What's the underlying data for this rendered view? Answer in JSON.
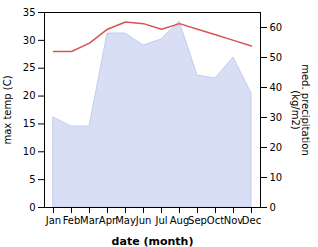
{
  "chart_data": {
    "type": "line",
    "categories": [
      "Jan",
      "Feb",
      "Mar",
      "Apr",
      "May",
      "Jun",
      "Jul",
      "Aug",
      "Sep",
      "Oct",
      "Nov",
      "Dec"
    ],
    "xlabel": "date (month)",
    "ylabel": "max temp (C)",
    "y2label": "med. precipitation\n(kg/m2)",
    "ylim": [
      0,
      35
    ],
    "yticks": [
      0,
      5,
      10,
      15,
      20,
      25,
      30,
      35
    ],
    "y2lim": [
      0,
      65
    ],
    "y2ticks": [
      0,
      10,
      20,
      30,
      40,
      50,
      60
    ],
    "grid": false,
    "series": [
      {
        "type": "area",
        "axis": "y2",
        "color": "#b8c4ed",
        "values": [
          30.0,
          27.0,
          27.0,
          58.0,
          58.0,
          54.0,
          56.0,
          62.0,
          44.0,
          43.0,
          50.0,
          38.0
        ]
      },
      {
        "type": "line",
        "color": "#d9534f",
        "values": [
          28.0,
          28.0,
          29.5,
          32.0,
          33.3,
          33.0,
          32.0,
          33.0,
          32.0,
          31.0,
          30.0,
          29.0
        ]
      }
    ]
  }
}
